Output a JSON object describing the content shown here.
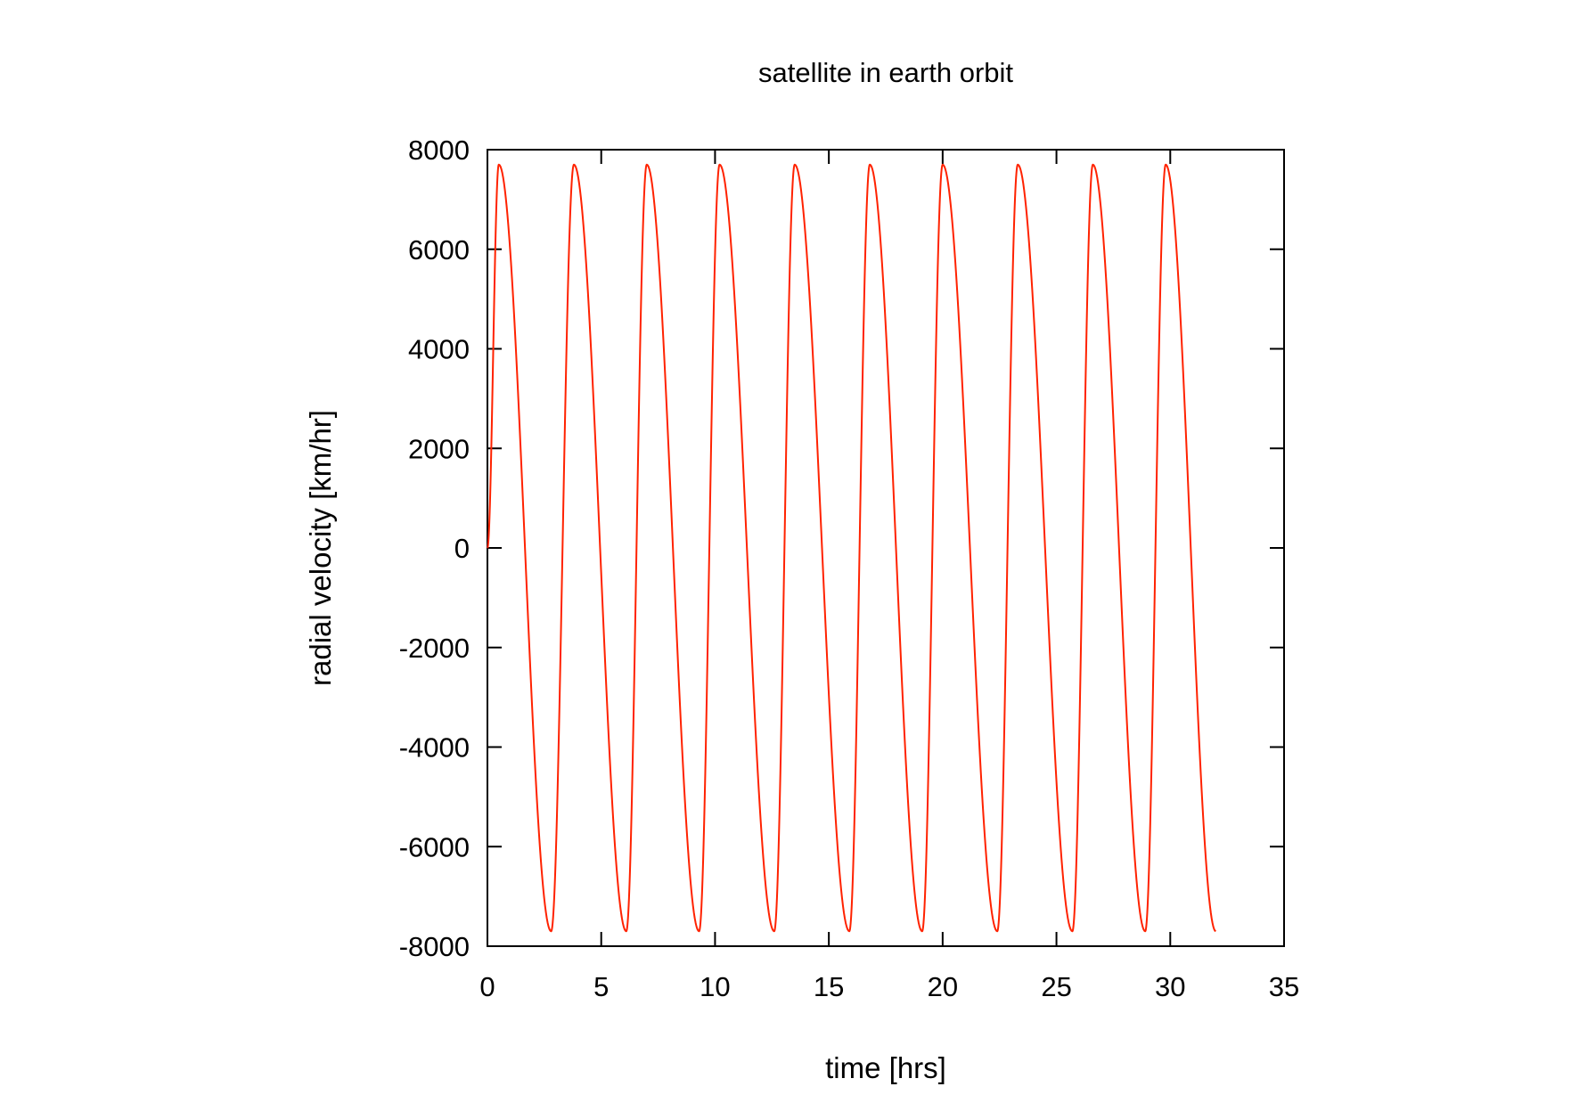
{
  "chart_data": {
    "type": "line",
    "title": "satellite in earth orbit",
    "xlabel": "time [hrs]",
    "ylabel": "radial velocity [km/hr]",
    "xlim": [
      0,
      35
    ],
    "ylim": [
      -8000,
      8000
    ],
    "xticks": [
      0,
      5,
      10,
      15,
      20,
      25,
      30,
      35
    ],
    "yticks": [
      -8000,
      -6000,
      -4000,
      -2000,
      0,
      2000,
      4000,
      6000,
      8000
    ],
    "xtick_labels": [
      "0",
      "5",
      "10",
      "15",
      "20",
      "25",
      "30",
      "35"
    ],
    "ytick_labels": [
      "-8000",
      "-6000",
      "-4000",
      "-2000",
      "0",
      "2000",
      "4000",
      "6000",
      "8000"
    ],
    "grid": false,
    "legend": "none",
    "series": [
      {
        "color": "#ff2200",
        "x": [
          0,
          0.5,
          2.8,
          3.8,
          6.1,
          7.0,
          9.3,
          10.2,
          12.6,
          13.5,
          15.9,
          16.8,
          19.1,
          20.0,
          22.4,
          23.3,
          25.7,
          26.6,
          28.9,
          29.8,
          32.0
        ],
        "y": [
          0,
          7700,
          -7700,
          7700,
          -7700,
          7700,
          -7700,
          7700,
          -7700,
          7700,
          -7700,
          7700,
          -7700,
          7700,
          -7700,
          7700,
          -7700,
          7700,
          -7700,
          7700,
          -7700
        ]
      }
    ]
  }
}
